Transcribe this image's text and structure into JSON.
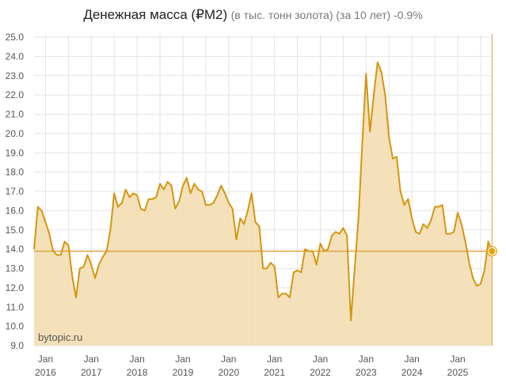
{
  "header": {
    "title": "Денежная масса (₽M2)",
    "subtitle": "(в тыс. тонн золота) (за 10 лет) -0.9%"
  },
  "watermark": "bytopic.ru",
  "colors": {
    "line": "#d4960f",
    "fill": "#f2dcae",
    "reference_line": "#d9a441",
    "grid": "#e3e3e3",
    "marker": "#e8a10e"
  },
  "chart_data": {
    "type": "area",
    "title": "Денежная масса (₽M2) (в тыс. тонн золота) (за 10 лет) -0.9%",
    "xlabel": "",
    "ylabel": "",
    "ylim": [
      9.0,
      25.0
    ],
    "yticks": [
      "25.0",
      "24.0",
      "23.0",
      "22.0",
      "21.0",
      "20.0",
      "19.0",
      "18.0",
      "17.0",
      "16.0",
      "15.0",
      "14.0",
      "13.0",
      "12.0",
      "11.0",
      "10.0",
      "9.0"
    ],
    "xticks": [
      {
        "line1": "Jan",
        "line2": "2016"
      },
      {
        "line1": "Jan",
        "line2": "2017"
      },
      {
        "line1": "Jan",
        "line2": "2018"
      },
      {
        "line1": "Jan",
        "line2": "2019"
      },
      {
        "line1": "Jan",
        "line2": "2020"
      },
      {
        "line1": "Jan",
        "line2": "2021"
      },
      {
        "line1": "Jan",
        "line2": "2022"
      },
      {
        "line1": "Jan",
        "line2": "2023"
      },
      {
        "line1": "Jan",
        "line2": "2024"
      },
      {
        "line1": "Jan",
        "line2": "2025"
      }
    ],
    "grid": true,
    "reference_value": 13.9,
    "start": "2015-10",
    "frequency": "monthly",
    "series": [
      {
        "name": "Денежная масса (₽M2) в тыс. тонн золота",
        "values": [
          14.0,
          16.2,
          16.0,
          15.4,
          14.8,
          13.9,
          13.7,
          13.7,
          14.4,
          14.2,
          12.6,
          11.5,
          13.0,
          13.1,
          13.7,
          13.2,
          12.5,
          13.2,
          13.6,
          13.9,
          15.0,
          16.9,
          16.2,
          16.4,
          17.1,
          16.7,
          16.9,
          16.8,
          16.1,
          16.0,
          16.6,
          16.6,
          16.7,
          17.4,
          17.1,
          17.5,
          17.3,
          16.1,
          16.5,
          17.3,
          17.7,
          16.9,
          17.4,
          17.1,
          17.0,
          16.3,
          16.3,
          16.4,
          16.8,
          17.3,
          16.9,
          16.4,
          16.1,
          14.5,
          15.6,
          15.3,
          16.0,
          16.9,
          15.4,
          15.2,
          13.0,
          13.0,
          13.3,
          13.1,
          11.5,
          11.7,
          11.7,
          11.5,
          12.8,
          12.9,
          12.8,
          14.0,
          13.9,
          13.9,
          13.2,
          14.3,
          13.9,
          14.0,
          14.7,
          14.9,
          14.8,
          15.1,
          14.7,
          10.3,
          13.0,
          15.6,
          19.5,
          23.1,
          20.1,
          22.0,
          23.7,
          23.2,
          22.0,
          19.8,
          18.7,
          18.8,
          17.0,
          16.3,
          16.6,
          15.6,
          14.9,
          14.8,
          15.3,
          15.1,
          15.5,
          16.2,
          16.2,
          16.3,
          14.8,
          14.8,
          14.9,
          15.9,
          15.3,
          14.4,
          13.3,
          12.5,
          12.1,
          12.2,
          12.9,
          14.4,
          13.9
        ]
      }
    ]
  }
}
